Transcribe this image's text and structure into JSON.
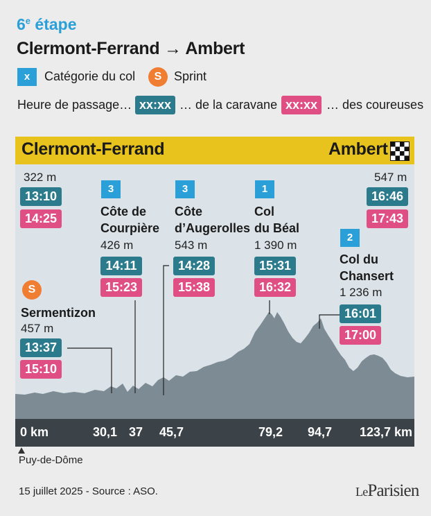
{
  "header": {
    "stage_number": "6",
    "stage_suffix": "e",
    "stage_word": " étape",
    "route": "Clermont-Ferrand → Ambert"
  },
  "legend": {
    "category_symbol": "x",
    "category_label": "Catégorie du col",
    "sprint_symbol": "S",
    "sprint_label": "Sprint",
    "passage_label": "Heure de passage…",
    "caravan_sample": "xx:xx",
    "caravan_label": "… de la caravane",
    "riders_sample": "xx:xx",
    "riders_label": "… des coureuses"
  },
  "profile": {
    "start_name": "Clermont-Ferrand",
    "finish_name": "Ambert",
    "finish_icon": "checkered-flag-icon",
    "start": {
      "altitude": "322 m",
      "caravan": "13:10",
      "riders": "14:25"
    },
    "finish": {
      "altitude": "547 m",
      "caravan": "16:46",
      "riders": "17:43"
    },
    "sprint": {
      "badge": "S",
      "name": "Sermentizon",
      "altitude": "457 m",
      "caravan": "13:37",
      "riders": "15:10",
      "km": "30,1"
    },
    "climbs": [
      {
        "category": "3",
        "name_line1": "Côte de",
        "name_line2": "Courpière",
        "altitude": "426 m",
        "caravan": "14:11",
        "riders": "15:23",
        "km": "37"
      },
      {
        "category": "3",
        "name_line1": "Côte",
        "name_line2": "d’Augerolles",
        "altitude": "543 m",
        "caravan": "14:28",
        "riders": "15:38",
        "km": "45,7"
      },
      {
        "category": "1",
        "name_line1": "Col",
        "name_line2": "du Béal",
        "altitude": "1 390 m",
        "caravan": "15:31",
        "riders": "16:32",
        "km": "79,2"
      },
      {
        "category": "2",
        "name_line1": "Col du",
        "name_line2": "Chansert",
        "altitude": "1 236 m",
        "caravan": "16:01",
        "riders": "17:00",
        "km": "94,7"
      }
    ],
    "km_start": "0 km",
    "km_end": "123,7 km",
    "department": "Puy-de-Dôme"
  },
  "footer": {
    "date_source": "15 juillet 2025 - Source : ASO.",
    "logo_prefix": "Le",
    "logo_name": "Parisien"
  },
  "colors": {
    "accent_blue": "#2a9fd8",
    "sprint_orange": "#ef7d32",
    "caravan_teal": "#2b7b8c",
    "riders_pink": "#e04f83",
    "header_yellow": "#e8c31e",
    "profile_grey": "#7a8a96"
  }
}
